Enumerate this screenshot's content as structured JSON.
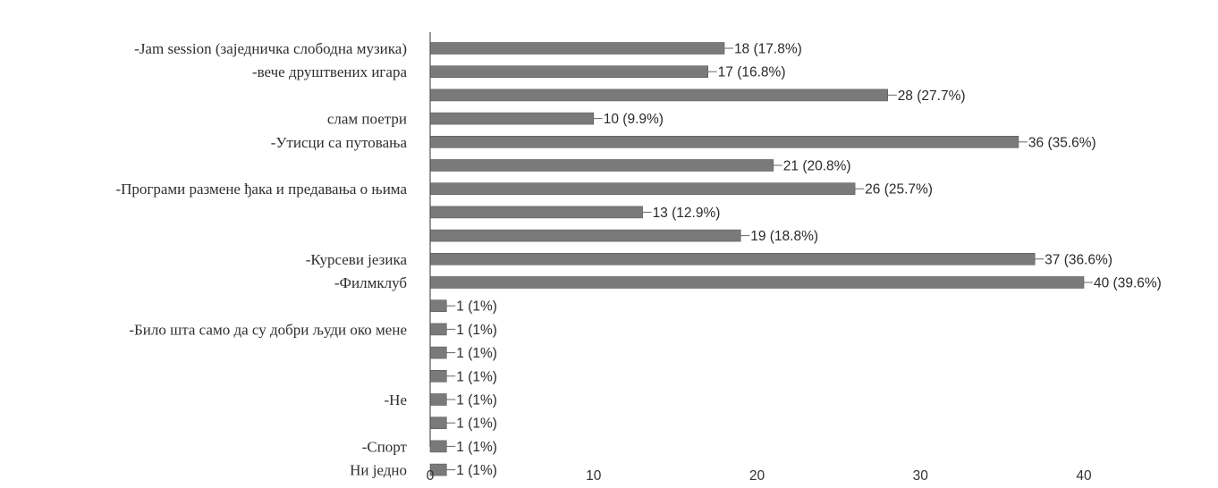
{
  "chart_data": {
    "type": "bar",
    "orientation": "horizontal",
    "labeled_bars": [
      {
        "label": "-Jam session (заједничка слободна музика)",
        "bar": 0
      },
      {
        "label": "-вече друштвених игара",
        "bar": 1
      },
      {
        "label": "слам поетри",
        "bar": 3
      },
      {
        "label": "-Утисци са путовања",
        "bar": 4
      },
      {
        "label": "-Програми размене ђака и предавања о њима",
        "bar": 6
      },
      {
        "label": "-Курсеви језика",
        "bar": 9
      },
      {
        "label": "-Филмклуб",
        "bar": 10
      },
      {
        "label": "-Било шта само да су добри људи око мене",
        "bar": 12
      },
      {
        "label": "-Не",
        "bar": 15
      },
      {
        "label": "-Спорт",
        "bar": 17
      },
      {
        "label": "Ни једно",
        "bar": 18
      }
    ],
    "values": [
      18,
      17,
      28,
      10,
      36,
      21,
      26,
      13,
      19,
      37,
      40,
      1,
      1,
      1,
      1,
      1,
      1,
      1,
      1
    ],
    "value_labels": [
      "18 (17.8%)",
      "17 (16.8%)",
      "28 (27.7%)",
      "10 (9.9%)",
      "36 (35.6%)",
      "21 (20.8%)",
      "26 (25.7%)",
      "13 (12.9%)",
      "19 (18.8%)",
      "37 (36.6%)",
      "40 (39.6%)",
      "1 (1%)",
      "1 (1%)",
      "1 (1%)",
      "1 (1%)",
      "1 (1%)",
      "1 (1%)",
      "1 (1%)",
      "1 (1%)"
    ],
    "xticks": [
      0,
      10,
      20,
      30,
      40
    ],
    "xtick_labels": [
      "0",
      "10",
      "20",
      "30",
      "40"
    ],
    "xlim": [
      0,
      40
    ],
    "grid": false,
    "bar_color": "#7a7a7a"
  }
}
